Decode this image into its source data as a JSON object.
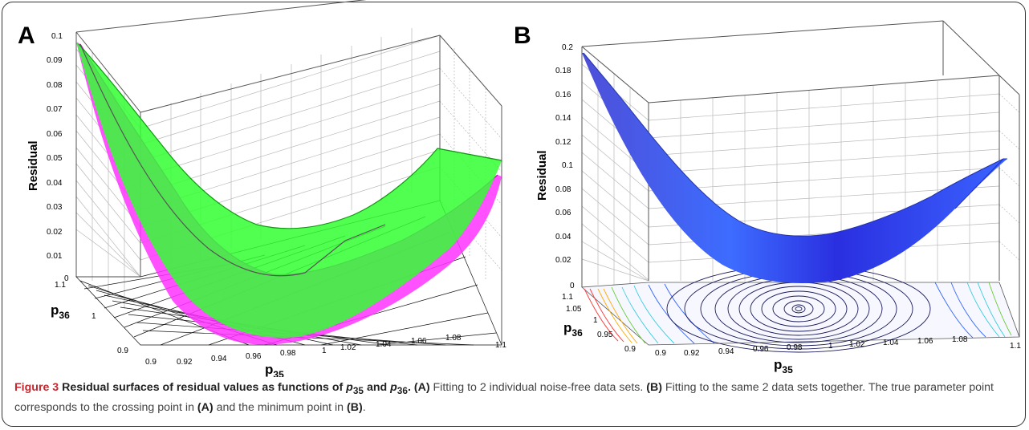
{
  "colors": {
    "panelA_surface1": "#ff33ff",
    "panelA_surface2": "#33ff33",
    "panelB_surface": "#3d5fff",
    "caption_accent": "#c6272f",
    "grid": "#b8b8b8"
  },
  "chart_data": [
    {
      "panel": "A",
      "type": "surface3d",
      "zlabel": "Residual",
      "xlabel_main": "p",
      "xlabel_sub": "35",
      "ylabel_main": "p",
      "ylabel_sub": "36",
      "x_ticks": [
        "0.9",
        "0.92",
        "0.94",
        "0.96",
        "0.98",
        "1",
        "1.02",
        "1.04",
        "1.06",
        "1.08",
        "1.1"
      ],
      "y_ticks": [
        "0.9",
        "1",
        "1.1"
      ],
      "z_ticks": [
        "0",
        "0.01",
        "0.02",
        "0.03",
        "0.04",
        "0.05",
        "0.06",
        "0.07",
        "0.08",
        "0.09",
        "0.1"
      ],
      "xlim": [
        0.9,
        1.1
      ],
      "ylim": [
        0.9,
        1.1
      ],
      "zlim": [
        0,
        0.1
      ],
      "series": [
        {
          "color": "magenta",
          "values_at_x": {
            "x": [
              0.9,
              0.95,
              1.0,
              1.05,
              1.1
            ],
            "z_front": [
              0.095,
              0.035,
              0.0,
              0.015,
              0.043
            ],
            "z_back": [
              0.095,
              0.045,
              0.02,
              0.02,
              0.03
            ]
          }
        },
        {
          "color": "green",
          "values_at_x": {
            "x": [
              0.9,
              0.95,
              1.0,
              1.05,
              1.1
            ],
            "z_front": [
              0.095,
              0.03,
              0.0,
              0.02,
              0.06
            ],
            "z_back": [
              0.095,
              0.04,
              0.02,
              0.035,
              0.06
            ]
          }
        }
      ],
      "floor_mesh": "crossing grid projection",
      "crossing_point": {
        "x": 1.0,
        "y": 1.0,
        "z": 0
      }
    },
    {
      "panel": "B",
      "type": "surface3d",
      "zlabel": "Residual",
      "xlabel_main": "p",
      "xlabel_sub": "35",
      "ylabel_main": "p",
      "ylabel_sub": "36",
      "x_ticks": [
        "0.9",
        "0.92",
        "0.94",
        "0.96",
        "0.98",
        "1",
        "1.02",
        "1.04",
        "1.06",
        "1.08",
        "1.1"
      ],
      "y_ticks": [
        "0.9",
        "0.95",
        "1",
        "1.05",
        "1.1"
      ],
      "z_ticks": [
        "0",
        "0.02",
        "0.04",
        "0.06",
        "0.08",
        "0.1",
        "0.12",
        "0.14",
        "0.16",
        "0.18",
        "0.2"
      ],
      "xlim": [
        0.9,
        1.1
      ],
      "ylim": [
        0.9,
        1.1
      ],
      "zlim": [
        0,
        0.2
      ],
      "series": [
        {
          "color": "blue",
          "values_at_x": {
            "x": [
              0.9,
              0.95,
              1.0,
              1.05,
              1.1
            ],
            "z_front": [
              0.185,
              0.06,
              0.0,
              0.03,
              0.1
            ]
          }
        }
      ],
      "floor_contours": "concentric ellipses centered at minimum",
      "minimum_point": {
        "x": 1.0,
        "y": 1.0,
        "z": 0
      }
    }
  ],
  "panels": {
    "A": {
      "letter": "A"
    },
    "B": {
      "letter": "B"
    }
  },
  "caption": {
    "label": "Figure 3",
    "title_pre": "Residual surfaces of residual values as functions of ",
    "v1": "p",
    "v1_sub": "35",
    "title_and": " and ",
    "v2": "p",
    "v2_sub": "36",
    "title_end": ".",
    "ref_a": "(A)",
    "text_a": " Fitting to 2 individual noise-free data sets. ",
    "ref_b": "(B)",
    "text_b": " Fitting to the same 2 data sets together. The true parameter point corresponds to the crossing point in ",
    "ref_a2": "(A)",
    "text_c": " and the minimum point in ",
    "ref_b2": "(B)",
    "text_d": "."
  }
}
